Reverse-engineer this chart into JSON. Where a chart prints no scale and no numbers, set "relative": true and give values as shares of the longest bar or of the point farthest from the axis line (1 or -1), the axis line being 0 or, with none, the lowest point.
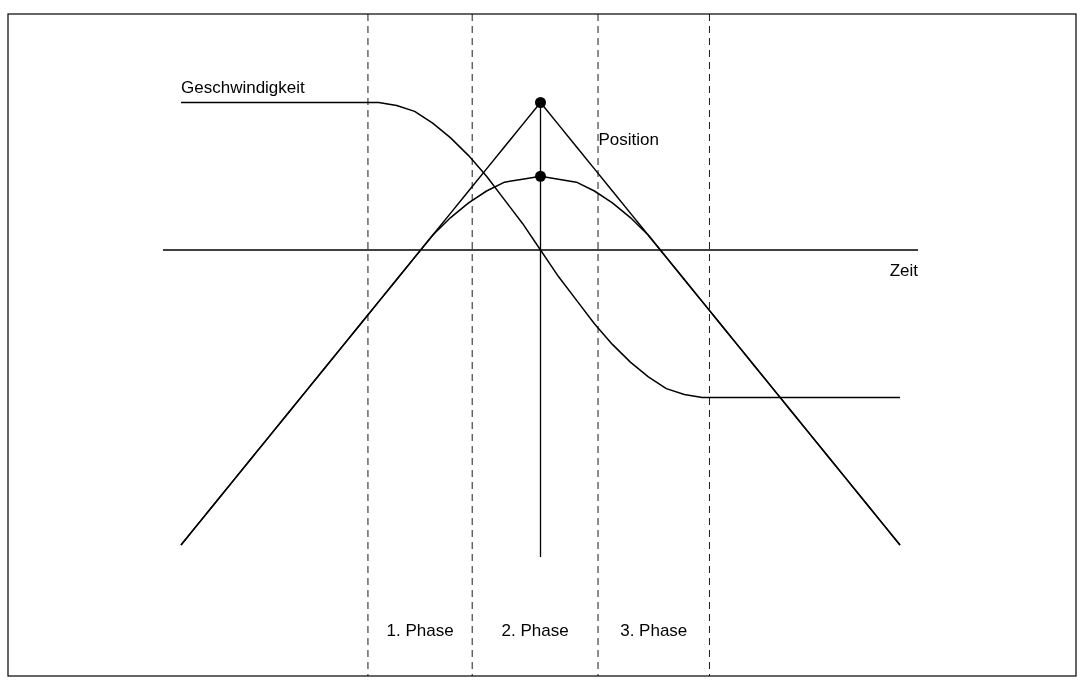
{
  "chart_data": {
    "type": "line",
    "relative": true,
    "xlabel": "Zeit",
    "legend": false,
    "marker": "none",
    "line_style": "solid",
    "categories": [
      null,
      null,
      null,
      null,
      null,
      null,
      null,
      null,
      null,
      null,
      null,
      null,
      null,
      null,
      null,
      null,
      null,
      null,
      null,
      null,
      null,
      null,
      null,
      null,
      null,
      null,
      null,
      null,
      null,
      null,
      null,
      null,
      null,
      null,
      null,
      null,
      null,
      null,
      null,
      null,
      null
    ],
    "series": [
      {
        "name": "Geschwindigkeit",
        "color": "#000000",
        "values": [
          0.5,
          0.5,
          0.5,
          0.5,
          0.5,
          0.5,
          0.5,
          0.5,
          0.5,
          0.5,
          0.5,
          0.5,
          0.49,
          0.47,
          0.43,
          0.38,
          0.32,
          0.25,
          0.17,
          0.09,
          0,
          -0.09,
          -0.17,
          -0.25,
          -0.32,
          -0.38,
          -0.43,
          -0.47,
          -0.49,
          -0.5,
          -0.5,
          -0.5,
          -0.5,
          -0.5,
          -0.5,
          -0.5,
          -0.5,
          -0.5,
          -0.5,
          -0.5,
          -0.5
        ]
      },
      {
        "name": "Position",
        "color": "#000000",
        "values": [
          -1,
          -0.925,
          -0.85,
          -0.775,
          -0.7,
          -0.625,
          -0.55,
          -0.475,
          -0.4,
          -0.325,
          -0.25,
          -0.175,
          -0.1,
          -0.025,
          0.05,
          0.125,
          0.2,
          0.275,
          0.35,
          0.425,
          0.5,
          0.425,
          0.35,
          0.275,
          0.2,
          0.125,
          0.05,
          -0.025,
          -0.1,
          -0.175,
          -0.25,
          -0.325,
          -0.4,
          -0.475,
          -0.55,
          -0.625,
          -0.7,
          -0.775,
          -0.85,
          -0.925,
          -1
        ]
      },
      {
        "color": "#000000",
        "values": [
          -1,
          -0.925,
          -0.85,
          -0.775,
          -0.7,
          -0.625,
          -0.55,
          -0.475,
          -0.4,
          -0.325,
          -0.25,
          -0.175,
          -0.1,
          -0.025,
          0.05,
          0.11,
          0.16,
          0.2,
          0.23,
          0.24,
          0.25,
          0.24,
          0.23,
          0.2,
          0.16,
          0.11,
          0.05,
          -0.025,
          -0.1,
          -0.175,
          -0.25,
          -0.325,
          -0.4,
          -0.475,
          -0.55,
          -0.625,
          -0.7,
          -0.775,
          -0.85,
          -0.925,
          -1
        ]
      }
    ],
    "annotations": [
      "1. Phase",
      "2. Phase",
      "3. Phase"
    ]
  }
}
